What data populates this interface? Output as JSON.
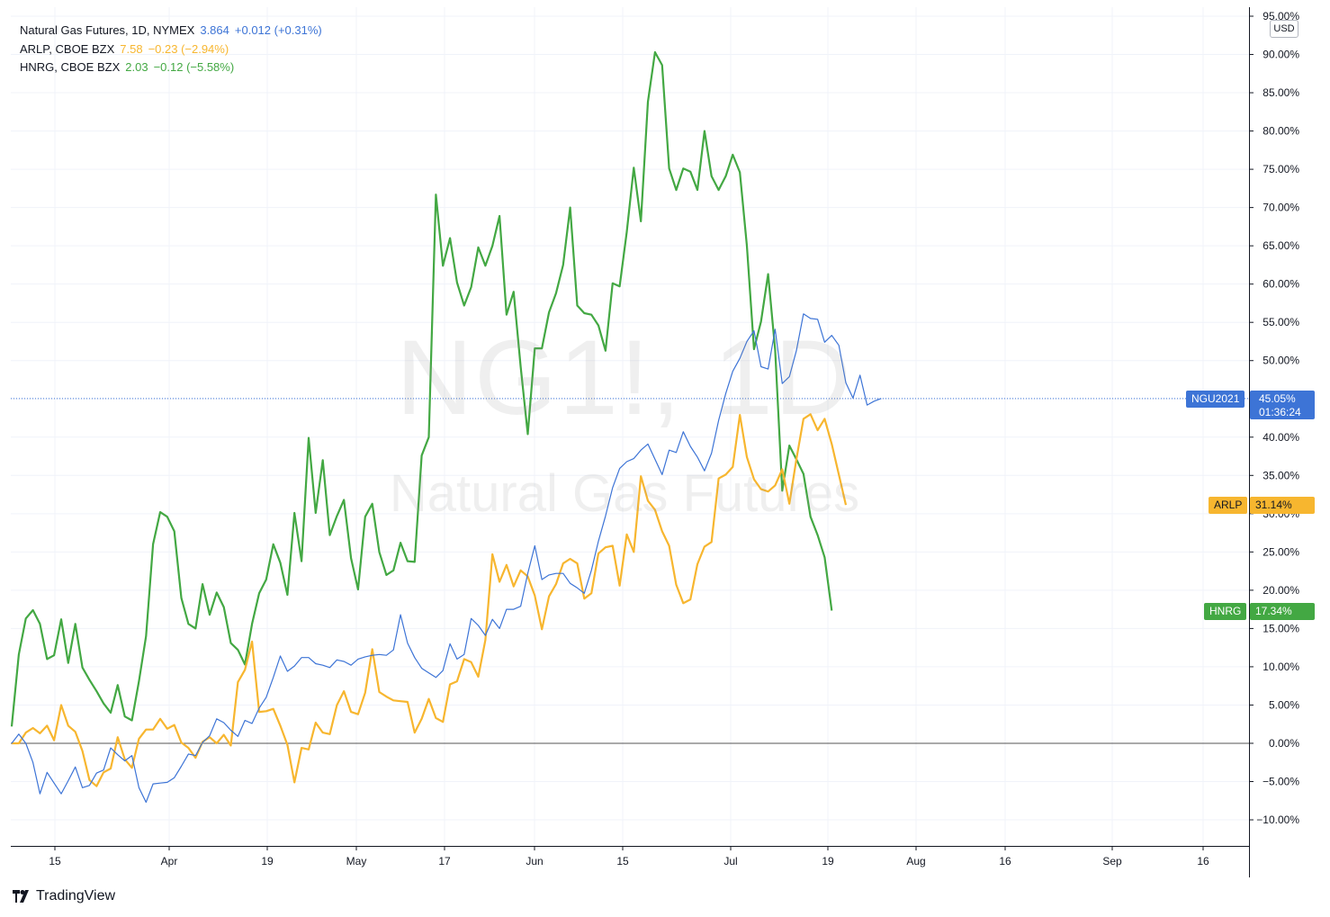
{
  "legend": [
    {
      "name": "Natural Gas Futures, 1D, NYMEX",
      "last": "3.864",
      "change": "+0.012 (+0.31%)",
      "color": "#3d74d6"
    },
    {
      "name": "ARLP, CBOE BZX",
      "last": "7.58",
      "change": "−0.23 (−2.94%)",
      "color": "#f7b62f"
    },
    {
      "name": "HNRG, CBOE BZX",
      "last": "2.03",
      "change": "−0.12 (−5.58%)",
      "color": "#43a843"
    }
  ],
  "currency_badge": "USD",
  "watermark": {
    "symbol": "NG1!, 1D",
    "description": "Natural Gas Futures"
  },
  "tags": {
    "ngu": {
      "label": "NGU2021",
      "value": "45.05%",
      "countdown": "01:36:24",
      "color": "#3d74d6"
    },
    "arlp": {
      "label": "ARLP",
      "value": "31.14%",
      "color": "#f7b62f"
    },
    "hnrg": {
      "label": "HNRG",
      "value": "17.34%",
      "color": "#43a843"
    }
  },
  "branding": "TradingView",
  "chart_data": {
    "type": "line",
    "yaxis_unit": "%",
    "yaxis_ticks": [
      "95.00%",
      "90.00%",
      "85.00%",
      "80.00%",
      "75.00%",
      "70.00%",
      "65.00%",
      "60.00%",
      "55.00%",
      "50.00%",
      "45.00%",
      "40.00%",
      "35.00%",
      "30.00%",
      "25.00%",
      "20.00%",
      "15.00%",
      "10.00%",
      "5.00%",
      "0.00%",
      "−5.00%",
      "−10.00%"
    ],
    "ylim": [
      -12.3,
      96.6
    ],
    "xaxis_ticks": [
      "15",
      "Apr",
      "19",
      "May",
      "17",
      "Jun",
      "15",
      "Jul",
      "19",
      "Aug",
      "16",
      "Sep",
      "16"
    ],
    "grid": true,
    "series": [
      {
        "name": "Natural Gas Futures",
        "color": "#3d74d6",
        "values": [
          0,
          1.2,
          0,
          -2.5,
          -6.6,
          -3.8,
          -5.2,
          -6.6,
          -4.9,
          -3.1,
          -5.8,
          -5.5,
          -3.9,
          -3.5,
          -0.6,
          -1.5,
          -2.3,
          -1.6,
          -5.8,
          -7.7,
          -5.3,
          -5.2,
          -5.1,
          -4.5,
          -3,
          -1.4,
          -1.6,
          0.1,
          1,
          3.2,
          2.7,
          1.7,
          0.9,
          3,
          2.6,
          4.6,
          6,
          8.6,
          11.4,
          9.4,
          10.1,
          11.2,
          11.2,
          10.4,
          10.2,
          9.9,
          10.9,
          10.7,
          10.2,
          11,
          11.3,
          11.5,
          11.6,
          11.5,
          12.2,
          16.8,
          13.1,
          11.2,
          9.8,
          9.2,
          8.6,
          9.5,
          13,
          11,
          11.6,
          16.3,
          15.4,
          14.1,
          16.2,
          15,
          17.5,
          17.5,
          17.9,
          22.2,
          25.8,
          21.4,
          22,
          22.2,
          22.2,
          20.9,
          20.3,
          19.6,
          22.6,
          26.4,
          29.7,
          33.4,
          35.9,
          36.8,
          37.2,
          38.3,
          39.1,
          37.1,
          35.1,
          38.3,
          38,
          40.7,
          38.8,
          37.4,
          35.6,
          37.9,
          42.2,
          45.7,
          48.6,
          50.3,
          52.5,
          53.9,
          49.2,
          48.9,
          54.1,
          47,
          47.9,
          51.3,
          56.1,
          55.5,
          55.4,
          52.4,
          53.3,
          52,
          47.1,
          45.1,
          48.1,
          44.2,
          44.7,
          45.05
        ]
      },
      {
        "name": "ARLP",
        "color": "#f7b62f",
        "values": [
          0,
          0,
          1.4,
          2,
          1.3,
          2.3,
          0.4,
          5,
          2.3,
          1.5,
          -1,
          -4.8,
          -5.6,
          -3.8,
          -3.3,
          0.8,
          -2.1,
          -3.2,
          0.6,
          1.8,
          1.8,
          3.2,
          1.9,
          2.4,
          0.1,
          -0.6,
          -1.9,
          0.2,
          0.8,
          0,
          1.1,
          -0.3,
          8,
          9.6,
          13.3,
          4.1,
          4.2,
          4.5,
          2.3,
          -0.2,
          -5.1,
          -0.6,
          -0.8,
          2.7,
          1.4,
          1.2,
          5,
          6.8,
          4.1,
          3.8,
          6.6,
          12.3,
          6.7,
          6.1,
          5.6,
          5.5,
          5.4,
          1.4,
          3.2,
          5.8,
          3.3,
          2.8,
          7.7,
          8.1,
          11,
          10.6,
          8.7,
          13.5,
          24.7,
          21.1,
          23.3,
          20.5,
          22.6,
          21.8,
          19.3,
          14.9,
          19.2,
          20.8,
          23.5,
          24.1,
          23.5,
          18.9,
          19.6,
          24.8,
          25.6,
          25.8,
          20.6,
          27.3,
          25,
          34.9,
          31.7,
          30.5,
          27.7,
          25.8,
          20.7,
          18.3,
          18.8,
          23.4,
          25.7,
          26.3,
          34.6,
          35.1,
          36.1,
          42.9,
          37.4,
          34.5,
          33.2,
          32.9,
          33.7,
          35.8,
          31.3,
          37.1,
          42.4,
          43,
          40.9,
          42.4,
          39.1,
          35.1,
          31.14
        ]
      },
      {
        "name": "HNRG",
        "color": "#43a843",
        "values": [
          2.2,
          11.6,
          16.3,
          17.4,
          15.6,
          11,
          11.5,
          16.2,
          10.5,
          15.6,
          9.9,
          8.3,
          6.8,
          5.2,
          4,
          7.6,
          3.5,
          3,
          8.1,
          14,
          26,
          30.2,
          29.6,
          27.7,
          19,
          15.6,
          15,
          20.8,
          16.8,
          19.7,
          17.8,
          13.1,
          12.2,
          10.3,
          15.6,
          19.6,
          21.4,
          26,
          23.6,
          19.4,
          30.1,
          23.8,
          39.9,
          30.1,
          37,
          27.2,
          29.7,
          31.8,
          24.2,
          20.1,
          29.6,
          31.3,
          25,
          22,
          22.6,
          26.2,
          23.8,
          23.7,
          37.6,
          40,
          71.7,
          62.4,
          66,
          60.2,
          57.2,
          59.6,
          64.8,
          62.4,
          65,
          68.9,
          56,
          59,
          49.2,
          40.4,
          51.6,
          51.6,
          56.3,
          58.8,
          62.5,
          70,
          57.2,
          56.2,
          56,
          54.6,
          51.3,
          60.1,
          59.7,
          66.8,
          75.2,
          68.2,
          83.8,
          90.3,
          88.6,
          75.1,
          72.3,
          75.1,
          74.7,
          72.3,
          80,
          74.1,
          72.3,
          74.1,
          76.9,
          74.6,
          65,
          51.5,
          55.1,
          61.3,
          51.4,
          33,
          38.9,
          37.1,
          35.2,
          29.6,
          27.2,
          24.3,
          17.34
        ]
      }
    ]
  }
}
